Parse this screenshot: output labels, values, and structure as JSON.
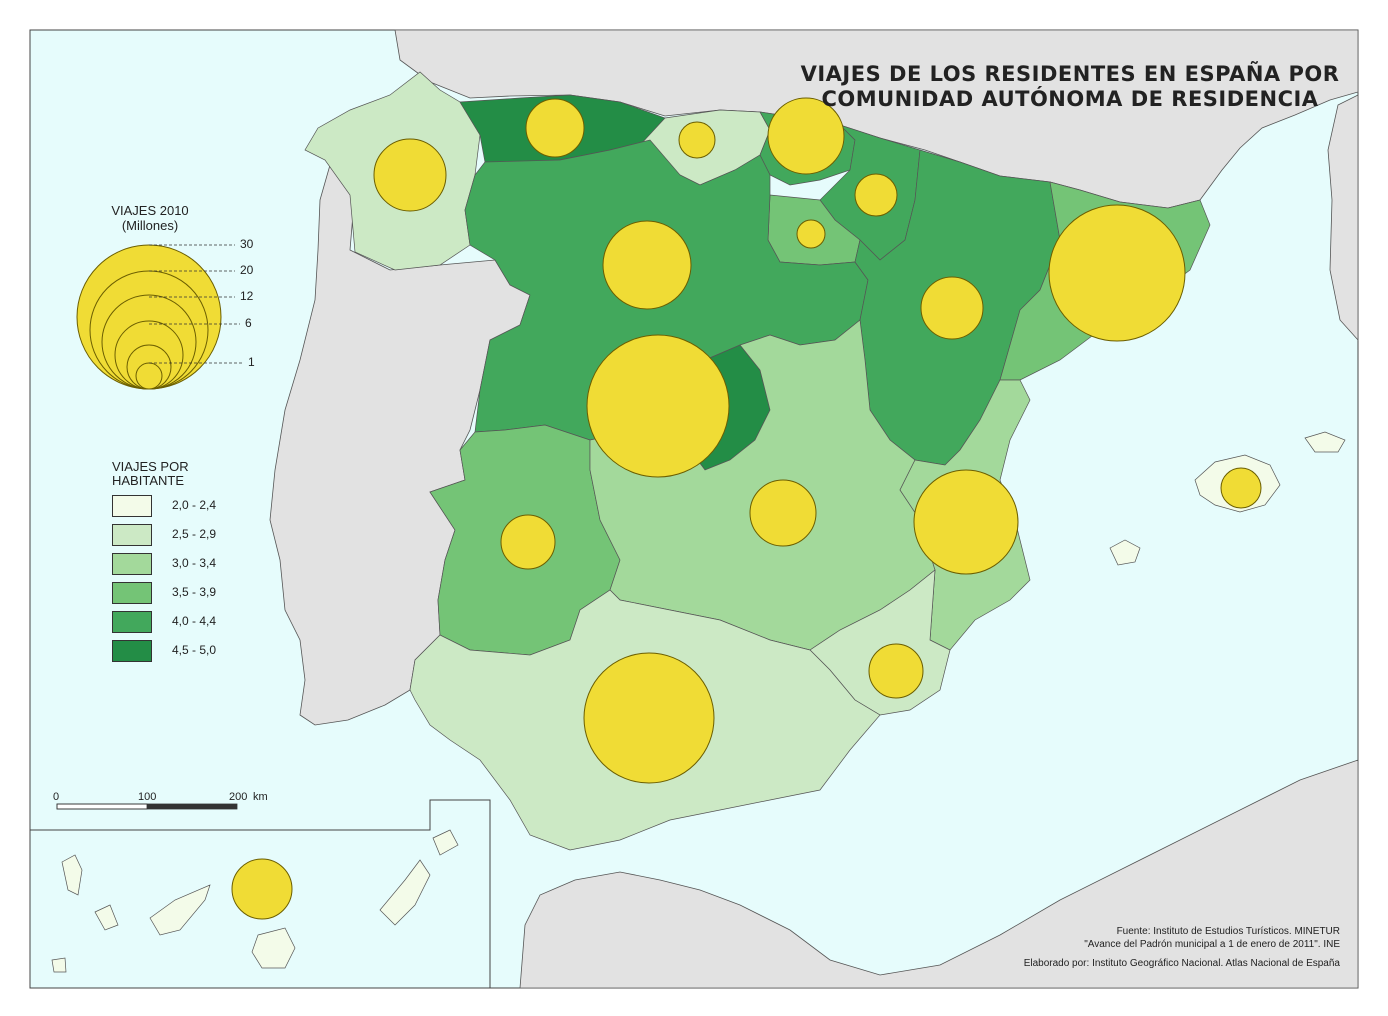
{
  "title": {
    "line1": "VIAJES DE LOS RESIDENTES EN ESPAÑA POR",
    "line2": "COMUNIDAD AUTÓNOMA DE RESIDENCIA"
  },
  "colors": {
    "sea": "#e6fcfc",
    "other_land": "#e2e2e2",
    "bubble_fill": "#f0dc35",
    "bubble_stroke": "#6b5e00"
  },
  "size_legend": {
    "title": "VIAJES 2010",
    "subtitle": "(Millones)",
    "values": [
      "30",
      "20",
      "12",
      "6",
      "1"
    ]
  },
  "choropleth_legend": {
    "title_line1": "VIAJES POR",
    "title_line2": "HABITANTE",
    "classes": [
      {
        "label": "2,0 - 2,4",
        "color": "#f3fbe9"
      },
      {
        "label": "2,5 - 2,9",
        "color": "#cce9c5"
      },
      {
        "label": "3,0 - 3,4",
        "color": "#a3d99b"
      },
      {
        "label": "3,5 - 3,9",
        "color": "#74c476"
      },
      {
        "label": "4,0 - 4,4",
        "color": "#42a85c"
      },
      {
        "label": "4,5 - 5,0",
        "color": "#238d46"
      }
    ]
  },
  "scale_bar": {
    "ticks": [
      "0",
      "100",
      "200"
    ],
    "unit": "km"
  },
  "credits": {
    "line1": "Fuente: Instituto de Estudios Turísticos. MINETUR",
    "line2": "\"Avance del Padrón municipal a 1 de enero de 2011\". INE",
    "line3": "Elaborado por: Instituto Geográfico Nacional. Atlas Nacional de España"
  }
}
